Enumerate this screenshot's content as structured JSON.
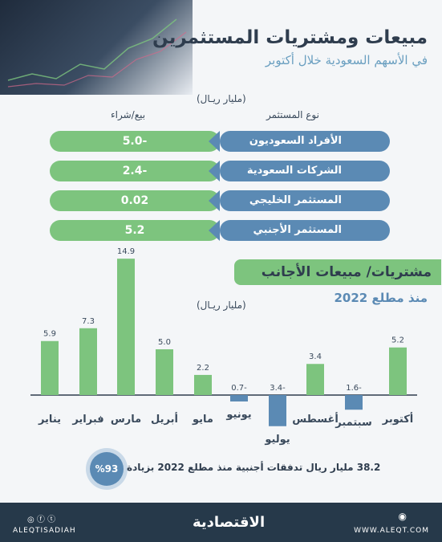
{
  "header": {
    "title": "مبيعات ومشتريات المستثمرين",
    "subtitle": "في الأسهم السعودية خلال أكتوبر"
  },
  "table": {
    "unit": "(مليار ريـال)",
    "col_investor": "نوع المستثمر",
    "col_value": "بيع/شراء",
    "rows": [
      {
        "label": "الأفراد السعوديون",
        "value": "5.0-"
      },
      {
        "label": "الشركات السعودية",
        "value": "2.4-"
      },
      {
        "label": "المستثمر الخليجي",
        "value": "0.02"
      },
      {
        "label": "المستثمر الأجنبي",
        "value": "5.2"
      }
    ]
  },
  "section": {
    "title": "مشتريات/ مبيعات الأجانب",
    "subtitle": "منذ مطلع 2022",
    "unit": "(مليار ريـال)"
  },
  "chart_data": {
    "type": "bar",
    "title": "مشتريات/ مبيعات الأجانب",
    "subtitle": "منذ مطلع 2022",
    "ylabel": "(مليار ريـال)",
    "categories": [
      "يناير",
      "فبراير",
      "مارس",
      "أبريل",
      "مايو",
      "يونيو",
      "يوليو",
      "أغسطس",
      "سبتمبر",
      "أكتوبر"
    ],
    "values": [
      5.9,
      7.3,
      14.9,
      5.0,
      2.2,
      -0.7,
      -3.4,
      3.4,
      -1.6,
      5.2
    ],
    "value_labels": [
      "5.9",
      "7.3",
      "14.9",
      "5.0",
      "2.2",
      "0.7-",
      "3.4-",
      "3.4",
      "1.6-",
      "5.2"
    ],
    "ylim": [
      -3.4,
      14.9
    ],
    "colors": {
      "positive": "#7dc47e",
      "negative": "#5b8ab4",
      "axis": "#2f3d4e",
      "label": "#3a4a5c"
    }
  },
  "note": {
    "badge": "%93",
    "text": "38.2 مليار ريال تدفقات أجنبية منذ مطلع 2022 بزيادة"
  },
  "footer": {
    "handle": "ALEQTISADIAH",
    "brand": "الاقتصادية",
    "website": "WWW.ALEQT.COM"
  }
}
